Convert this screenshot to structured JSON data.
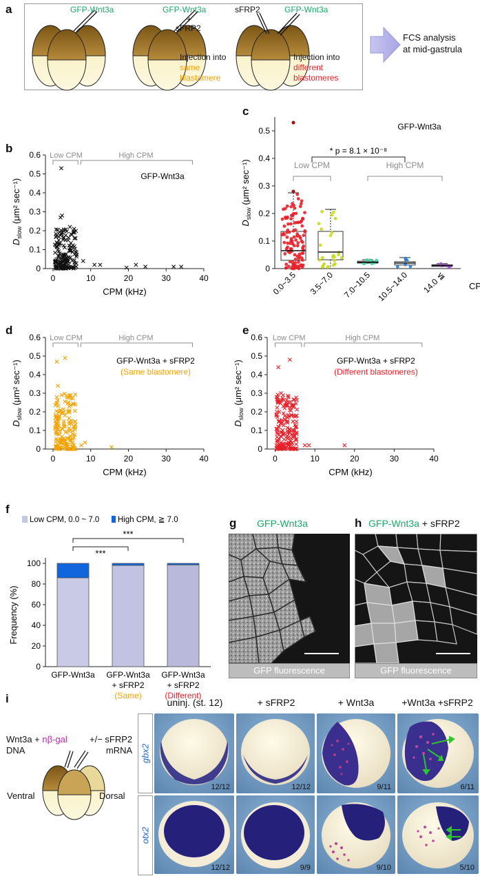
{
  "panels": {
    "a": {
      "letter": "a",
      "labels": {
        "emb1_top": "GFP-Wnt3a",
        "emb2_top": "GFP-Wnt3a",
        "emb2_plus": "+",
        "emb2_sfrp": "sFRP2",
        "emb3_sfrp": "sFRP2",
        "emb3_top": "GFP-Wnt3a",
        "inj_same_1": "Injection into",
        "inj_same_2": "same",
        "inj_same_3": "blastomere",
        "inj_diff_1": "Injection into",
        "inj_diff_2": "different",
        "inj_diff_3": "blastomeres",
        "fcs_1": "FCS analysis",
        "fcs_2": "at mid-gastrula"
      }
    },
    "b": {
      "letter": "b"
    },
    "c": {
      "letter": "c"
    },
    "d": {
      "letter": "d"
    },
    "e": {
      "letter": "e"
    },
    "f": {
      "letter": "f"
    },
    "g": {
      "letter": "g",
      "title": "GFP-Wnt3a",
      "caption": "GFP fluorescence"
    },
    "h": {
      "letter": "h",
      "title_a": "GFP-Wnt3a",
      "title_b": " + sFRP2",
      "caption": "GFP fluorescence"
    },
    "i": {
      "letter": "i",
      "left_labels": {
        "wnt": "Wnt3a + ",
        "ngal": "nβ-gal",
        "dna": "DNA",
        "sfrp": "+/− sFRP2",
        "mrna": "mRNA",
        "ventral": "Ventral",
        "dorsal": "Dorsal"
      },
      "columns": [
        "uninj. (st. 12)",
        "+ sFRP2",
        "+ Wnt3a",
        "+Wnt3a +sFRP2"
      ],
      "rows": [
        {
          "gene": "gbx2",
          "counts": [
            "12/12",
            "12/12",
            "9/11",
            "6/11"
          ]
        },
        {
          "gene": "otx2",
          "counts": [
            "12/12",
            "9/9",
            "9/10",
            "5/10"
          ]
        }
      ]
    }
  },
  "colors": {
    "green": "#1aa86b",
    "orange": "#f5a300",
    "red": "#e8202a",
    "gray": "#8c8c8c",
    "low_bar": "#c5c8e3",
    "high_bar": "#1166dd",
    "violet": "#a24ad0",
    "lime": "#c8dc1e",
    "teal": "#3fd4a0",
    "blue": "#2a7fd6"
  },
  "chart_data": [
    {
      "id": "b",
      "type": "scatter",
      "title": "GFP-Wnt3a",
      "xlabel": "CPM (kHz)",
      "ylabel_main": "D",
      "ylabel_sub": "slow",
      "ylabel_unit": "(μm² sec⁻¹)",
      "xlim": [
        -2,
        40
      ],
      "ylim": [
        0,
        0.6
      ],
      "xticks": [
        0,
        10,
        20,
        30,
        40
      ],
      "yticks": [
        0,
        0.1,
        0.2,
        0.3,
        0.4,
        0.5,
        0.6
      ],
      "low_label": "Low CPM",
      "high_label": "High CPM",
      "low_range": [
        0,
        7
      ],
      "high_range": [
        7,
        37
      ],
      "outliers": [
        [
          2.2,
          0.53
        ],
        [
          2.4,
          0.28
        ],
        [
          2.0,
          0.27
        ],
        [
          4.5,
          0.22
        ],
        [
          5.6,
          0.21
        ],
        [
          5.4,
          0.19
        ],
        [
          5.7,
          0.16
        ],
        [
          8.0,
          0.04
        ],
        [
          11.0,
          0.02
        ],
        [
          12.5,
          0.02
        ],
        [
          19.5,
          0.005
        ],
        [
          22.0,
          0.02
        ],
        [
          24.5,
          0.01
        ],
        [
          32.0,
          0.01
        ],
        [
          34.0,
          0.01
        ]
      ],
      "cluster": {
        "n": 160,
        "x": [
          0.5,
          6.5
        ],
        "y": [
          0.0,
          0.21
        ]
      }
    },
    {
      "id": "c",
      "type": "box",
      "title": "GFP-Wnt3a",
      "xlabel": "CPM (kHz)",
      "ylabel_main": "D",
      "ylabel_sub": "slow",
      "ylabel_unit": "(μm² sec⁻¹)",
      "ylim": [
        0,
        0.55
      ],
      "yticks": [
        0,
        0.1,
        0.2,
        0.3,
        0.4,
        0.5
      ],
      "categories": [
        "0.0~3.5",
        "3.5~7.0",
        "7.0~10.5",
        "10.5~14.0",
        "14.0 ≦"
      ],
      "boxes": [
        {
          "min": 0.0,
          "q1": 0.03,
          "median": 0.065,
          "q3": 0.135,
          "max": 0.275,
          "n": 110,
          "spread": [
            0.0,
            0.27
          ],
          "outliers": [
            0.53,
            0.28
          ]
        },
        {
          "min": 0.0,
          "q1": 0.032,
          "median": 0.06,
          "q3": 0.135,
          "max": 0.215,
          "n": 26,
          "spread": [
            0.005,
            0.21
          ],
          "outliers": []
        },
        {
          "min": 0.018,
          "q1": 0.02,
          "median": 0.023,
          "q3": 0.027,
          "max": 0.032,
          "n": 7,
          "spread": [
            0.018,
            0.032
          ],
          "outliers": []
        },
        {
          "min": 0.007,
          "q1": 0.013,
          "median": 0.02,
          "q3": 0.025,
          "max": 0.04,
          "n": 6,
          "spread": [
            0.007,
            0.04
          ],
          "outliers": []
        },
        {
          "min": 0.005,
          "q1": 0.008,
          "median": 0.011,
          "q3": 0.014,
          "max": 0.018,
          "n": 5,
          "spread": [
            0.005,
            0.018
          ],
          "outliers": []
        }
      ],
      "significance": "* p = 8.1 × 10⁻⁸",
      "low_label": "Low CPM",
      "high_label": "High CPM"
    },
    {
      "id": "d",
      "type": "scatter",
      "title": "GFP-Wnt3a + sFRP2",
      "subtitle": "(Same blastomere)",
      "xlabel": "CPM (kHz)",
      "ylabel_main": "D",
      "ylabel_sub": "slow",
      "ylabel_unit": "(μm² sec⁻¹)",
      "xlim": [
        -2,
        40
      ],
      "ylim": [
        0,
        0.6
      ],
      "xticks": [
        0,
        10,
        20,
        30,
        40
      ],
      "yticks": [
        0,
        0.1,
        0.2,
        0.3,
        0.4,
        0.5,
        0.6
      ],
      "low_label": "Low CPM",
      "high_label": "High CPM",
      "low_range": [
        0,
        7
      ],
      "high_range": [
        7,
        37
      ],
      "outliers": [
        [
          3.2,
          0.49
        ],
        [
          1.0,
          0.47
        ],
        [
          1.3,
          0.34
        ],
        [
          2.3,
          0.29
        ],
        [
          3.8,
          0.28
        ],
        [
          7.5,
          0.02
        ],
        [
          8.5,
          0.035
        ],
        [
          15.5,
          0.01
        ]
      ],
      "cluster": {
        "n": 170,
        "x": [
          0.5,
          6.0
        ],
        "y": [
          0.0,
          0.3
        ]
      }
    },
    {
      "id": "e",
      "type": "scatter",
      "title": "GFP-Wnt3a + sFRP2",
      "subtitle": "(Different blastomeres)",
      "xlabel": "CPM (kHz)",
      "ylabel_main": "D",
      "ylabel_sub": "slow",
      "ylabel_unit": "(μm² sec⁻¹)",
      "xlim": [
        -2,
        40
      ],
      "ylim": [
        0,
        0.6
      ],
      "xticks": [
        0,
        10,
        20,
        30,
        40
      ],
      "yticks": [
        0,
        0.1,
        0.2,
        0.3,
        0.4,
        0.5,
        0.6
      ],
      "low_label": "Low CPM",
      "high_label": "High CPM",
      "low_range": [
        0,
        7
      ],
      "high_range": [
        7,
        37
      ],
      "outliers": [
        [
          3.7,
          0.48
        ],
        [
          0.8,
          0.44
        ],
        [
          1.5,
          0.3
        ],
        [
          2.0,
          0.29
        ],
        [
          7.5,
          0.02
        ],
        [
          8.5,
          0.02
        ],
        [
          17.5,
          0.02
        ]
      ],
      "cluster": {
        "n": 180,
        "x": [
          0.3,
          5.5
        ],
        "y": [
          0.0,
          0.3
        ]
      }
    },
    {
      "id": "f",
      "type": "bar",
      "stacked": true,
      "legend_low": "Low CPM, 0.0 ~ 7.0",
      "legend_high": "High CPM, ≧ 7.0",
      "ylabel": "Frequency (%)",
      "ylim": [
        0,
        100
      ],
      "yticks": [
        0,
        20,
        40,
        60,
        80,
        100
      ],
      "categories": [
        {
          "line1": "GFP-Wnt3a",
          "line2": "",
          "line3": "",
          "color3": ""
        },
        {
          "line1": "GFP-Wnt3a",
          "line2": "+ sFRP2",
          "line3": "(Same)",
          "color3": "#f5a300"
        },
        {
          "line1": "GFP-Wnt3a",
          "line2": "+ sFRP2",
          "line3": "(Different)",
          "color3": "#e8202a"
        }
      ],
      "series": [
        {
          "name": "Low CPM",
          "values": [
            86,
            98,
            98.5
          ]
        },
        {
          "name": "High CPM",
          "values": [
            14,
            2,
            1.5
          ]
        }
      ],
      "significance": [
        "***",
        "***"
      ]
    }
  ]
}
